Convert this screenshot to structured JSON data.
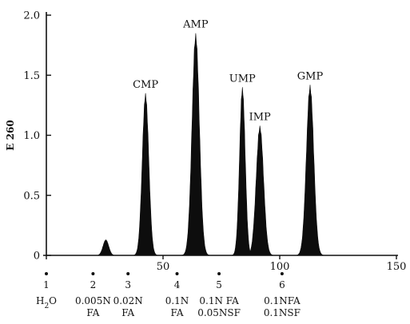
{
  "chart_data": {
    "type": "area",
    "title": "",
    "xlabel": "",
    "ylabel": "E 260",
    "xlim": [
      0,
      150
    ],
    "ylim": [
      0,
      2.0
    ],
    "x_ticks": [
      0,
      50,
      100,
      150
    ],
    "x_tick_labels": [
      "",
      "50",
      "100",
      "150"
    ],
    "y_ticks": [
      0,
      0.5,
      1.0,
      1.5,
      2.0
    ],
    "y_tick_labels": [
      "0",
      "0.5",
      "1.0",
      "1.5",
      "2.0"
    ],
    "grid": false,
    "legend": "none",
    "color": "#0d0d0d",
    "peaks": [
      {
        "label": "",
        "center": 25.5,
        "height": 0.13,
        "width": 2.0
      },
      {
        "label": "CMP",
        "center": 42.5,
        "height": 1.35,
        "width": 2.3
      },
      {
        "label": "AMP",
        "center": 64.0,
        "height": 1.85,
        "width": 2.6
      },
      {
        "label": "UMP",
        "center": 84.0,
        "height": 1.4,
        "width": 2.0
      },
      {
        "label": "IMP",
        "center": 91.5,
        "height": 1.08,
        "width": 2.6
      },
      {
        "label": "GMP",
        "center": 113.0,
        "height": 1.42,
        "width": 2.6
      }
    ],
    "eluent_changes": [
      {
        "x": 0,
        "number": "1",
        "lines": [
          "H2O"
        ]
      },
      {
        "x": 20,
        "number": "2",
        "lines": [
          "0.005N",
          "FA"
        ]
      },
      {
        "x": 35,
        "number": "3",
        "lines": [
          "0.02N",
          "FA"
        ]
      },
      {
        "x": 56,
        "number": "4",
        "lines": [
          "0.1N",
          "FA"
        ]
      },
      {
        "x": 74,
        "number": "5",
        "lines": [
          "0.1N FA",
          "0.05NSF"
        ]
      },
      {
        "x": 101,
        "number": "6",
        "lines": [
          "0.1NFA",
          "0.1NSF"
        ]
      }
    ]
  }
}
